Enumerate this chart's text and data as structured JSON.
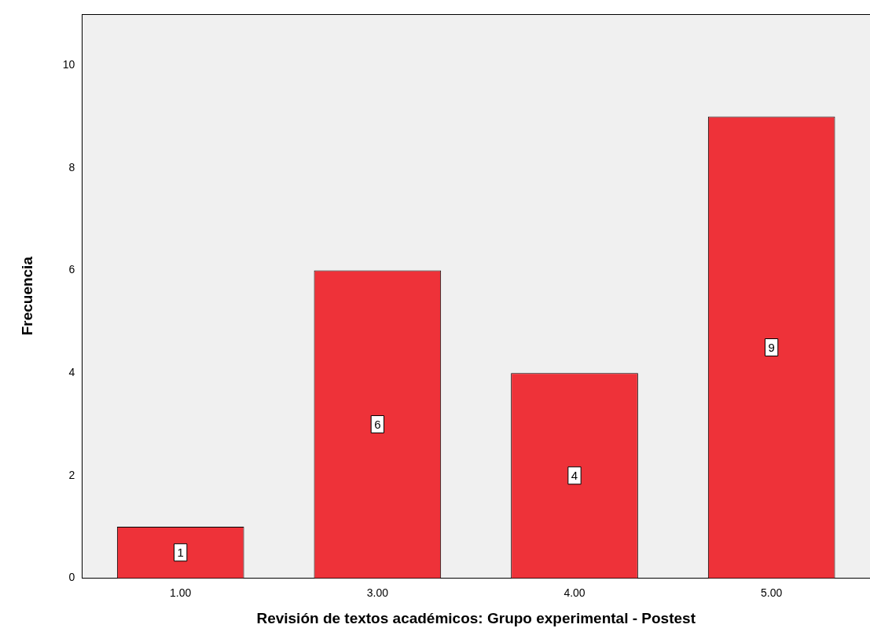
{
  "chart_data": {
    "type": "bar",
    "xlabel": "Revisión de textos académicos: Grupo experimental - Postest",
    "ylabel": "Frecuencia",
    "categories": [
      "1.00",
      "3.00",
      "4.00",
      "5.00"
    ],
    "values": [
      1,
      6,
      4,
      9
    ],
    "color": "#ee3239",
    "ylim": [
      0,
      11
    ],
    "yticks": [
      0,
      2,
      4,
      6,
      8,
      10
    ],
    "data_labels": true
  }
}
